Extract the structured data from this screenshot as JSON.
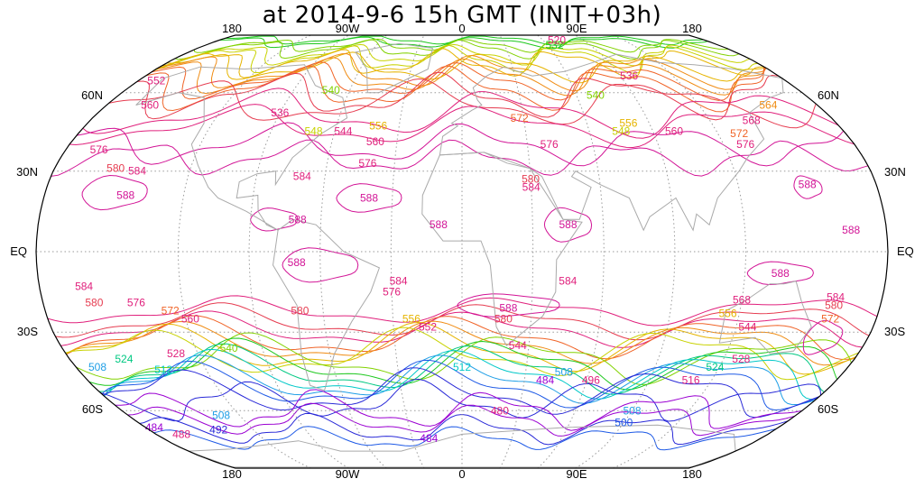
{
  "title": "at 2014-9-6 15h GMT (INIT+03h)",
  "longitude_labels": [
    "180",
    "90W",
    "0",
    "90E",
    "180"
  ],
  "latitude_labels_left": [
    "60N",
    "30N",
    "EQ",
    "30S",
    "60S"
  ],
  "latitude_labels_right": [
    "60N",
    "30N",
    "EQ",
    "30S",
    "60S"
  ],
  "projection": "Robinson",
  "colors": {
    "graticule": "#9a9a9a",
    "coastline": "#aaaaaa",
    "border": "#000000"
  },
  "contour_colors": {
    "484": "#9b00d2",
    "492": "#2a2ad8",
    "500": "#1e5ae6",
    "508": "#1e9ee6",
    "512": "#00c8c8",
    "524": "#00c882",
    "532": "#1ec81e",
    "540": "#82d200",
    "548": "#c8d200",
    "556": "#e6b400",
    "564": "#f08c14",
    "572": "#f06428",
    "580": "#e63c50",
    "584": "#e0207c",
    "588": "#d21496"
  },
  "contour_labels": [
    {
      "text": "588",
      "lon": -145,
      "lat": 21
    },
    {
      "text": "588",
      "lon": -40,
      "lat": 20
    },
    {
      "text": "588",
      "lon": -10,
      "lat": 10
    },
    {
      "text": "588",
      "lon": 45,
      "lat": 10
    },
    {
      "text": "588",
      "lon": -70,
      "lat": 12
    },
    {
      "text": "588",
      "lon": 165,
      "lat": 8
    },
    {
      "text": "588",
      "lon": -70,
      "lat": -4
    },
    {
      "text": "588",
      "lon": 135,
      "lat": -8
    },
    {
      "text": "588",
      "lon": 20,
      "lat": -21
    },
    {
      "text": "588",
      "lon": 150,
      "lat": 25
    },
    {
      "text": "584",
      "lon": -143,
      "lat": 30
    },
    {
      "text": "584",
      "lon": -70,
      "lat": 28
    },
    {
      "text": "584",
      "lon": 30,
      "lat": 24
    },
    {
      "text": "584",
      "lon": -161,
      "lat": -13
    },
    {
      "text": "584",
      "lon": -27,
      "lat": -11
    },
    {
      "text": "584",
      "lon": 45,
      "lat": -11
    },
    {
      "text": "584",
      "lon": 160,
      "lat": -17
    },
    {
      "text": "580",
      "lon": -153,
      "lat": 31
    },
    {
      "text": "580",
      "lon": 30,
      "lat": 27
    },
    {
      "text": "580",
      "lon": -158,
      "lat": -19
    },
    {
      "text": "580",
      "lon": -70,
      "lat": -22
    },
    {
      "text": "580",
      "lon": 18,
      "lat": -25
    },
    {
      "text": "580",
      "lon": 160,
      "lat": -20
    },
    {
      "text": "576",
      "lon": -165,
      "lat": 38
    },
    {
      "text": "576",
      "lon": -42,
      "lat": 33
    },
    {
      "text": "576",
      "lon": 40,
      "lat": 40
    },
    {
      "text": "576",
      "lon": 130,
      "lat": 40
    },
    {
      "text": "576",
      "lon": -140,
      "lat": -19
    },
    {
      "text": "576",
      "lon": -30,
      "lat": -15
    },
    {
      "text": "572",
      "lon": 28,
      "lat": 50
    },
    {
      "text": "572",
      "lon": 130,
      "lat": 44
    },
    {
      "text": "572",
      "lon": -126,
      "lat": -22
    },
    {
      "text": "572",
      "lon": 160,
      "lat": -25
    },
    {
      "text": "568",
      "lon": 140,
      "lat": 49
    },
    {
      "text": "568",
      "lon": 120,
      "lat": -18
    },
    {
      "text": "564",
      "lon": 155,
      "lat": 55
    },
    {
      "text": "560",
      "lon": -158,
      "lat": 55
    },
    {
      "text": "560",
      "lon": -40,
      "lat": 41
    },
    {
      "text": "560",
      "lon": 100,
      "lat": 45
    },
    {
      "text": "560",
      "lon": -118,
      "lat": -25
    },
    {
      "text": "556",
      "lon": -40,
      "lat": 47
    },
    {
      "text": "556",
      "lon": 80,
      "lat": 48
    },
    {
      "text": "556",
      "lon": -22,
      "lat": -25
    },
    {
      "text": "556",
      "lon": 115,
      "lat": -23
    },
    {
      "text": "552",
      "lon": -170,
      "lat": 65
    },
    {
      "text": "552",
      "lon": -15,
      "lat": -28
    },
    {
      "text": "548",
      "lon": -70,
      "lat": 45
    },
    {
      "text": "548",
      "lon": 75,
      "lat": 45
    },
    {
      "text": "544",
      "lon": -56,
      "lat": 45
    },
    {
      "text": "544",
      "lon": 125,
      "lat": -28
    },
    {
      "text": "544",
      "lon": 25,
      "lat": -35
    },
    {
      "text": "540",
      "lon": -70,
      "lat": 61
    },
    {
      "text": "540",
      "lon": 70,
      "lat": 59
    },
    {
      "text": "540",
      "lon": -105,
      "lat": -36
    },
    {
      "text": "536",
      "lon": -90,
      "lat": 52
    },
    {
      "text": "536",
      "lon": 95,
      "lat": 67
    },
    {
      "text": "532",
      "lon": 65,
      "lat": 82
    },
    {
      "text": "528",
      "lon": -130,
      "lat": -38
    },
    {
      "text": "528",
      "lon": 128,
      "lat": -40
    },
    {
      "text": "524",
      "lon": -155,
      "lat": -40
    },
    {
      "text": "524",
      "lon": 118,
      "lat": -43
    },
    {
      "text": "520",
      "lon": 70,
      "lat": 85
    },
    {
      "text": "516",
      "lon": 110,
      "lat": -48
    },
    {
      "text": "512",
      "lon": 0,
      "lat": -43
    },
    {
      "text": "512",
      "lon": -140,
      "lat": -44
    },
    {
      "text": "508",
      "lon": -170,
      "lat": -43
    },
    {
      "text": "508",
      "lon": 48,
      "lat": -45
    },
    {
      "text": "508",
      "lon": 90,
      "lat": -60
    },
    {
      "text": "508",
      "lon": -130,
      "lat": -62
    },
    {
      "text": "500",
      "lon": 90,
      "lat": -65
    },
    {
      "text": "496",
      "lon": 62,
      "lat": -48
    },
    {
      "text": "492",
      "lon": -140,
      "lat": -68
    },
    {
      "text": "488",
      "lon": -165,
      "lat": -70
    },
    {
      "text": "484",
      "lon": -175,
      "lat": -67
    },
    {
      "text": "484",
      "lon": 40,
      "lat": -48
    },
    {
      "text": "484",
      "lon": -20,
      "lat": -72
    },
    {
      "text": "480",
      "lon": 20,
      "lat": -60
    }
  ]
}
